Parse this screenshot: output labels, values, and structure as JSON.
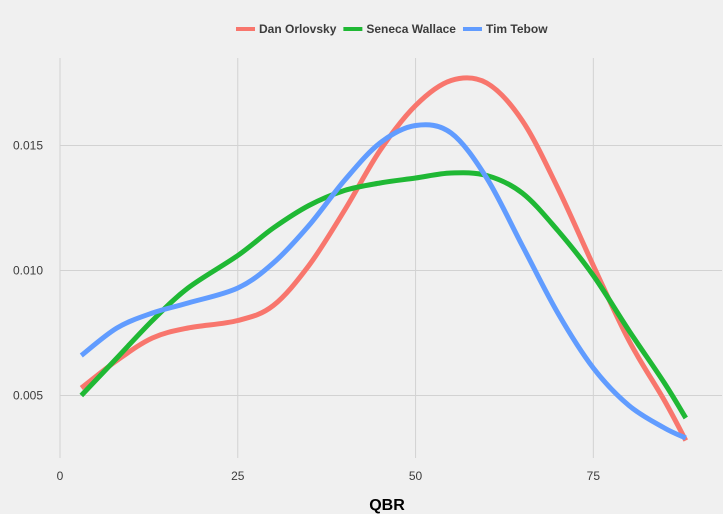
{
  "chart_data": {
    "type": "line",
    "title": "",
    "xlabel": "QBR",
    "ylabel": "",
    "xlim": [
      0,
      90
    ],
    "ylim": [
      0.0025,
      0.0185
    ],
    "x_ticks": [
      0,
      25,
      50,
      75
    ],
    "x_tick_labels": [
      "0",
      "25",
      "50",
      "75"
    ],
    "y_ticks": [
      0.005,
      0.01,
      0.015
    ],
    "y_tick_labels": [
      "0.005",
      "0.010",
      "0.015"
    ],
    "grid": true,
    "legend_position": "top",
    "series": [
      {
        "name": "Dan Orlovsky",
        "color": "#f8766d",
        "points": [
          [
            3,
            0.0053
          ],
          [
            8,
            0.0064
          ],
          [
            13,
            0.0073
          ],
          [
            18,
            0.0077
          ],
          [
            25,
            0.008
          ],
          [
            30,
            0.0086
          ],
          [
            35,
            0.0102
          ],
          [
            40,
            0.0124
          ],
          [
            45,
            0.0148
          ],
          [
            50,
            0.0166
          ],
          [
            55,
            0.0176
          ],
          [
            60,
            0.0175
          ],
          [
            65,
            0.016
          ],
          [
            70,
            0.0133
          ],
          [
            75,
            0.0102
          ],
          [
            80,
            0.0072
          ],
          [
            85,
            0.0048
          ],
          [
            88,
            0.0032
          ]
        ]
      },
      {
        "name": "Seneca Wallace",
        "color": "#1fb834",
        "points": [
          [
            3,
            0.005
          ],
          [
            8,
            0.0065
          ],
          [
            13,
            0.008
          ],
          [
            18,
            0.0093
          ],
          [
            25,
            0.0106
          ],
          [
            30,
            0.0117
          ],
          [
            35,
            0.0126
          ],
          [
            40,
            0.0132
          ],
          [
            45,
            0.0135
          ],
          [
            50,
            0.0137
          ],
          [
            55,
            0.0139
          ],
          [
            60,
            0.0138
          ],
          [
            65,
            0.0131
          ],
          [
            70,
            0.0116
          ],
          [
            75,
            0.0098
          ],
          [
            80,
            0.0076
          ],
          [
            85,
            0.0055
          ],
          [
            88,
            0.0041
          ]
        ]
      },
      {
        "name": "Tim Tebow",
        "color": "#619cff",
        "points": [
          [
            3,
            0.0066
          ],
          [
            8,
            0.0077
          ],
          [
            13,
            0.0083
          ],
          [
            18,
            0.0087
          ],
          [
            25,
            0.0093
          ],
          [
            30,
            0.0103
          ],
          [
            35,
            0.0118
          ],
          [
            40,
            0.0136
          ],
          [
            45,
            0.0151
          ],
          [
            50,
            0.0158
          ],
          [
            55,
            0.0155
          ],
          [
            60,
            0.0137
          ],
          [
            65,
            0.011
          ],
          [
            70,
            0.0083
          ],
          [
            75,
            0.0061
          ],
          [
            80,
            0.0046
          ],
          [
            85,
            0.0037
          ],
          [
            88,
            0.0033
          ]
        ]
      }
    ]
  }
}
